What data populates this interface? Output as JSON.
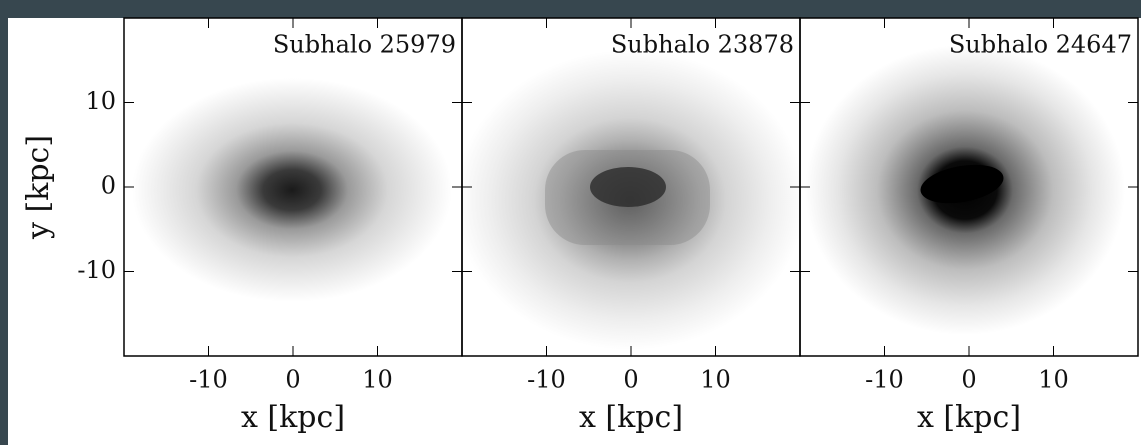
{
  "chart_data": [
    {
      "type": "image",
      "title": "Subhalo 25979",
      "xlabel": "x [kpc]",
      "ylabel": "y [kpc]",
      "xlim": [
        -20,
        20
      ],
      "ylim": [
        -20,
        20
      ],
      "xticks": [
        -10,
        0,
        10
      ],
      "yticks": [
        -10,
        0,
        10
      ],
      "colormap": "gray_r"
    },
    {
      "type": "image",
      "title": "Subhalo 23878",
      "xlabel": "x [kpc]",
      "xlim": [
        -20,
        20
      ],
      "ylim": [
        -20,
        20
      ],
      "xticks": [
        -10,
        0,
        10
      ],
      "sharey": true,
      "colormap": "gray_r"
    },
    {
      "type": "image",
      "title": "Subhalo 24647",
      "xlabel": "x [kpc]",
      "xlim": [
        -20,
        20
      ],
      "ylim": [
        -20,
        20
      ],
      "xticks": [
        -10,
        0,
        10
      ],
      "sharey": true,
      "colormap": "gray_r"
    }
  ]
}
